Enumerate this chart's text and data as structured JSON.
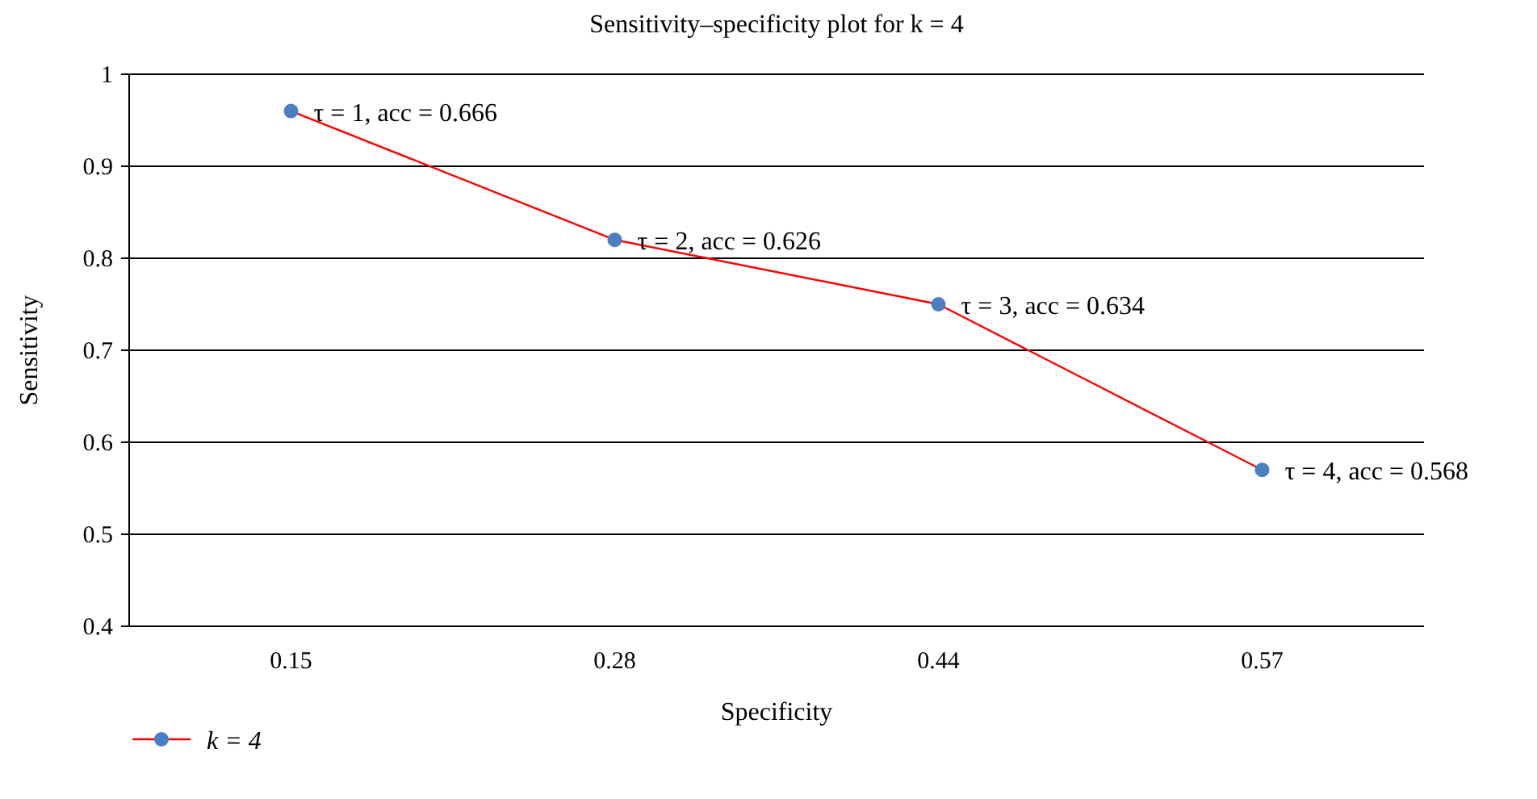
{
  "chart_data": {
    "type": "line",
    "title": "Sensitivity–specificity plot for k = 4",
    "xlabel": "Specificity",
    "ylabel": "Sensitivity",
    "categories": [
      "0.15",
      "0.28",
      "0.44",
      "0.57"
    ],
    "series": [
      {
        "name": "k = 4",
        "color": "#ff0000",
        "values": [
          0.96,
          0.82,
          0.75,
          0.57
        ]
      }
    ],
    "marker": "circle",
    "ylim": [
      0.4,
      1
    ],
    "yticks": [
      0.4,
      0.5,
      0.6,
      0.7,
      0.8,
      0.9,
      1
    ],
    "grid": "y",
    "legend": "bottom left",
    "annotations": [
      {
        "text": "τ = 1, acc = 0.666",
        "x": "0.15",
        "y": 0.96
      },
      {
        "text": "τ = 2, acc = 0.626",
        "x": "0.28",
        "y": 0.82
      },
      {
        "text": "τ = 3, acc = 0.634",
        "x": "0.44",
        "y": 0.75
      },
      {
        "text": "τ = 4, acc = 0.568",
        "x": "0.57",
        "y": 0.57
      }
    ]
  }
}
